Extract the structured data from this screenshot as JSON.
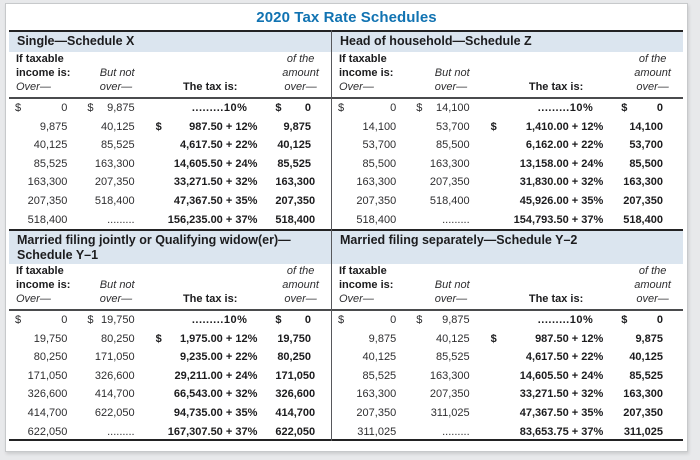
{
  "page": {
    "title": "2020 Tax Rate Schedules"
  },
  "colors": {
    "title_blue": "#1173b2",
    "section_bar_bg": "#dbe5ef",
    "rule_dark": "#232324"
  },
  "column_headers": {
    "col1_line1": "If taxable",
    "col1_line2": "income is:",
    "col1_line3": "Over—",
    "col2_line1": "But not",
    "col2_line2": "over—",
    "col3": "The tax is:",
    "col4_line1": "of the",
    "col4_line2": "amount",
    "col4_line3": "over—"
  },
  "schedules": [
    {
      "id": "single",
      "title_line1": "Single—Schedule X",
      "title_line2": "",
      "rows": [
        [
          "$ 0",
          "$ 9,875",
          ".........10%",
          "$ 0"
        ],
        [
          "9,875",
          "40,125",
          "$ 987.50 + 12%",
          "9,875"
        ],
        [
          "40,125",
          "85,525",
          "4,617.50 + 22%",
          "40,125"
        ],
        [
          "85,525",
          "163,300",
          "14,605.50 + 24%",
          "85,525"
        ],
        [
          "163,300",
          "207,350",
          "33,271.50 + 32%",
          "163,300"
        ],
        [
          "207,350",
          "518,400",
          "47,367.50 + 35%",
          "207,350"
        ],
        [
          "518,400",
          ".........",
          "156,235.00 + 37%",
          "518,400"
        ]
      ]
    },
    {
      "id": "head-of-household",
      "title_line1": "Head of household—Schedule Z",
      "title_line2": "",
      "rows": [
        [
          "$ 0",
          "$ 14,100",
          ".........10%",
          "$ 0"
        ],
        [
          "14,100",
          "53,700",
          "$ 1,410.00 + 12%",
          "14,100"
        ],
        [
          "53,700",
          "85,500",
          "6,162.00 + 22%",
          "53,700"
        ],
        [
          "85,500",
          "163,300",
          "13,158.00 + 24%",
          "85,500"
        ],
        [
          "163,300",
          "207,350",
          "31,830.00 + 32%",
          "163,300"
        ],
        [
          "207,350",
          "518,400",
          "45,926.00 + 35%",
          "207,350"
        ],
        [
          "518,400",
          ".........",
          "154,793.50 + 37%",
          "518,400"
        ]
      ]
    },
    {
      "id": "married-filing-jointly",
      "title_line1": "Married filing jointly or Qualifying widow(er)—",
      "title_line2": "Schedule Y–1",
      "rows": [
        [
          "$ 0",
          "$ 19,750",
          ".........10%",
          "$ 0"
        ],
        [
          "19,750",
          "80,250",
          "$ 1,975.00 + 12%",
          "19,750"
        ],
        [
          "80,250",
          "171,050",
          "9,235.00 + 22%",
          "80,250"
        ],
        [
          "171,050",
          "326,600",
          "29,211.00 + 24%",
          "171,050"
        ],
        [
          "326,600",
          "414,700",
          "66,543.00 + 32%",
          "326,600"
        ],
        [
          "414,700",
          "622,050",
          "94,735.00 + 35%",
          "414,700"
        ],
        [
          "622,050",
          ".........",
          "167,307.50 + 37%",
          "622,050"
        ]
      ]
    },
    {
      "id": "married-filing-separately",
      "title_line1": "Married filing separately—Schedule Y–2",
      "title_line2": "",
      "rows": [
        [
          "$ 0",
          "$ 9,875",
          ".........10%",
          "$ 0"
        ],
        [
          "9,875",
          "40,125",
          "$ 987.50 + 12%",
          "9,875"
        ],
        [
          "40,125",
          "85,525",
          "4,617.50 + 22%",
          "40,125"
        ],
        [
          "85,525",
          "163,300",
          "14,605.50 + 24%",
          "85,525"
        ],
        [
          "163,300",
          "207,350",
          "33,271.50 + 32%",
          "163,300"
        ],
        [
          "207,350",
          "311,025",
          "47,367.50 + 35%",
          "207,350"
        ],
        [
          "311,025",
          ".........",
          "83,653.75 + 37%",
          "311,025"
        ]
      ]
    }
  ]
}
